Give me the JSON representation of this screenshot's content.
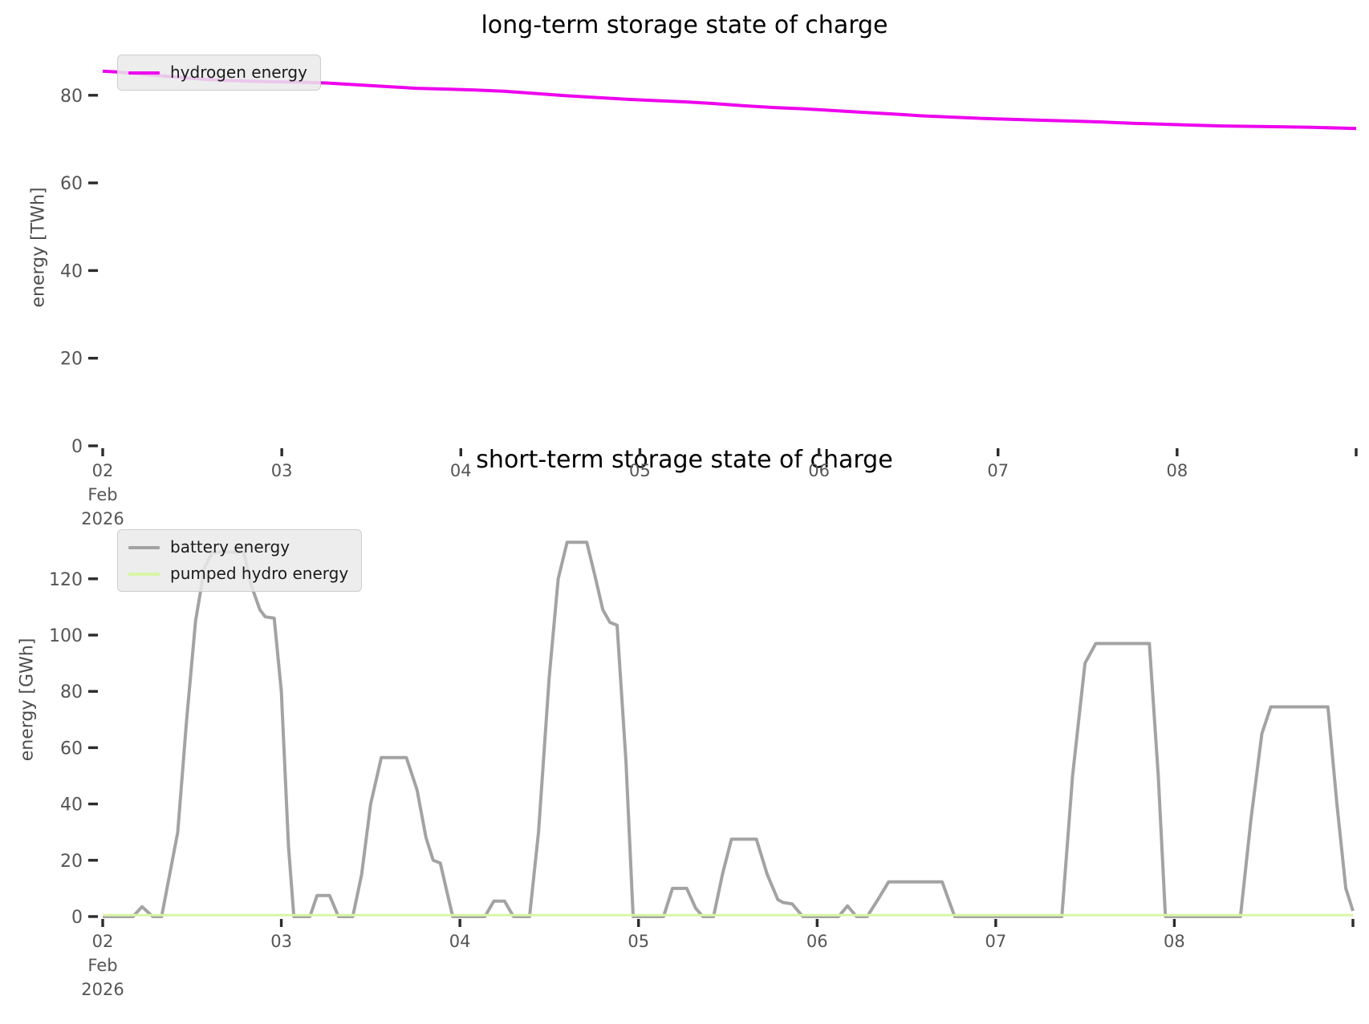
{
  "figure": {
    "month_label": "Feb",
    "year_label": "2026"
  },
  "chart_data": [
    {
      "type": "line",
      "title": "long-term storage state of charge",
      "xlabel": "",
      "ylabel": "energy [TWh]",
      "xlim_days": [
        2,
        9
      ],
      "ylim": [
        0,
        91
      ],
      "yticks": [
        0,
        20,
        40,
        60,
        80
      ],
      "xticks_days": [
        2,
        3,
        4,
        5,
        6,
        7,
        8
      ],
      "xtick_labels": [
        "02",
        "03",
        "04",
        "05",
        "06",
        "07",
        "08"
      ],
      "x_first_tick_sublabels": [
        "Feb",
        "2026"
      ],
      "grid": false,
      "legend_position": "upper left",
      "series": [
        {
          "name": "hydrogen energy",
          "color": "#ee00ee",
          "line_width": 4,
          "points": [
            [
              2.0,
              85.5
            ],
            [
              2.08,
              85.3
            ],
            [
              2.25,
              84.7
            ],
            [
              2.42,
              84.1
            ],
            [
              2.58,
              83.6
            ],
            [
              2.75,
              83.3
            ],
            [
              2.92,
              83.1
            ],
            [
              3.08,
              83.0
            ],
            [
              3.25,
              82.8
            ],
            [
              3.42,
              82.4
            ],
            [
              3.58,
              82.0
            ],
            [
              3.75,
              81.6
            ],
            [
              3.92,
              81.4
            ],
            [
              4.08,
              81.2
            ],
            [
              4.25,
              80.9
            ],
            [
              4.42,
              80.4
            ],
            [
              4.58,
              79.9
            ],
            [
              4.75,
              79.5
            ],
            [
              4.92,
              79.1
            ],
            [
              5.08,
              78.8
            ],
            [
              5.25,
              78.5
            ],
            [
              5.42,
              78.1
            ],
            [
              5.58,
              77.6
            ],
            [
              5.75,
              77.2
            ],
            [
              5.92,
              76.9
            ],
            [
              6.08,
              76.5
            ],
            [
              6.25,
              76.1
            ],
            [
              6.42,
              75.7
            ],
            [
              6.58,
              75.3
            ],
            [
              6.75,
              75.0
            ],
            [
              6.92,
              74.7
            ],
            [
              7.08,
              74.5
            ],
            [
              7.25,
              74.3
            ],
            [
              7.42,
              74.1
            ],
            [
              7.58,
              73.9
            ],
            [
              7.75,
              73.6
            ],
            [
              7.92,
              73.4
            ],
            [
              8.08,
              73.2
            ],
            [
              8.25,
              73.0
            ],
            [
              8.42,
              72.9
            ],
            [
              8.58,
              72.8
            ],
            [
              8.75,
              72.7
            ],
            [
              8.92,
              72.5
            ],
            [
              9.0,
              72.4
            ]
          ]
        }
      ]
    },
    {
      "type": "line",
      "title": "short-term storage state of charge",
      "xlabel": "",
      "ylabel": "energy [GWh]",
      "xlim_days": [
        2,
        9
      ],
      "ylim": [
        0,
        140
      ],
      "yticks": [
        0,
        20,
        40,
        60,
        80,
        100,
        120
      ],
      "xticks_days": [
        2,
        3,
        4,
        5,
        6,
        7,
        8
      ],
      "xtick_labels": [
        "02",
        "03",
        "04",
        "05",
        "06",
        "07",
        "08"
      ],
      "x_first_tick_sublabels": [
        "Feb",
        "2026"
      ],
      "grid": false,
      "legend_position": "upper left",
      "series": [
        {
          "name": "battery energy",
          "color": "#a3a3a3",
          "line_width": 4,
          "points": [
            [
              2.0,
              0
            ],
            [
              2.17,
              0
            ],
            [
              2.22,
              3.5
            ],
            [
              2.28,
              0
            ],
            [
              2.33,
              0
            ],
            [
              2.42,
              30
            ],
            [
              2.47,
              70
            ],
            [
              2.52,
              105
            ],
            [
              2.57,
              124
            ],
            [
              2.61,
              129
            ],
            [
              2.64,
              129.5
            ],
            [
              2.79,
              129.5
            ],
            [
              2.83,
              118
            ],
            [
              2.88,
              109
            ],
            [
              2.91,
              106.5
            ],
            [
              2.96,
              106
            ],
            [
              3.0,
              80
            ],
            [
              3.04,
              25
            ],
            [
              3.07,
              0
            ],
            [
              3.16,
              0
            ],
            [
              3.2,
              7.5
            ],
            [
              3.27,
              7.5
            ],
            [
              3.32,
              0
            ],
            [
              3.4,
              0
            ],
            [
              3.45,
              15
            ],
            [
              3.5,
              40
            ],
            [
              3.56,
              56.5
            ],
            [
              3.7,
              56.5
            ],
            [
              3.76,
              45
            ],
            [
              3.81,
              28
            ],
            [
              3.85,
              20
            ],
            [
              3.89,
              19
            ],
            [
              3.93,
              8
            ],
            [
              3.96,
              0
            ],
            [
              4.14,
              0
            ],
            [
              4.19,
              5.5
            ],
            [
              4.25,
              5.5
            ],
            [
              4.3,
              0
            ],
            [
              4.39,
              0
            ],
            [
              4.44,
              30
            ],
            [
              4.5,
              85
            ],
            [
              4.55,
              120
            ],
            [
              4.6,
              133
            ],
            [
              4.71,
              133
            ],
            [
              4.76,
              120
            ],
            [
              4.8,
              109
            ],
            [
              4.84,
              104.5
            ],
            [
              4.88,
              103.5
            ],
            [
              4.93,
              55
            ],
            [
              4.97,
              0
            ],
            [
              5.14,
              0
            ],
            [
              5.19,
              10
            ],
            [
              5.27,
              10
            ],
            [
              5.32,
              3
            ],
            [
              5.36,
              0
            ],
            [
              5.42,
              0
            ],
            [
              5.47,
              15
            ],
            [
              5.52,
              27.5
            ],
            [
              5.66,
              27.5
            ],
            [
              5.72,
              15
            ],
            [
              5.78,
              6
            ],
            [
              5.81,
              5
            ],
            [
              5.86,
              4.5
            ],
            [
              5.92,
              0
            ],
            [
              6.12,
              0
            ],
            [
              6.17,
              3.8
            ],
            [
              6.22,
              0
            ],
            [
              6.28,
              0
            ],
            [
              6.34,
              6
            ],
            [
              6.4,
              12.3
            ],
            [
              6.7,
              12.3
            ],
            [
              6.77,
              0
            ],
            [
              7.37,
              0
            ],
            [
              7.43,
              50
            ],
            [
              7.5,
              90
            ],
            [
              7.56,
              97
            ],
            [
              7.86,
              97
            ],
            [
              7.91,
              50
            ],
            [
              7.95,
              0
            ],
            [
              8.37,
              0
            ],
            [
              8.43,
              35
            ],
            [
              8.49,
              65
            ],
            [
              8.54,
              74.5
            ],
            [
              8.86,
              74.5
            ],
            [
              8.91,
              40
            ],
            [
              8.96,
              10
            ],
            [
              9.0,
              2
            ]
          ]
        },
        {
          "name": "pumped hydro energy",
          "color": "#d9f5a6",
          "line_width": 3,
          "points": [
            [
              2.0,
              0.5
            ],
            [
              9.0,
              0.5
            ]
          ]
        }
      ]
    }
  ]
}
